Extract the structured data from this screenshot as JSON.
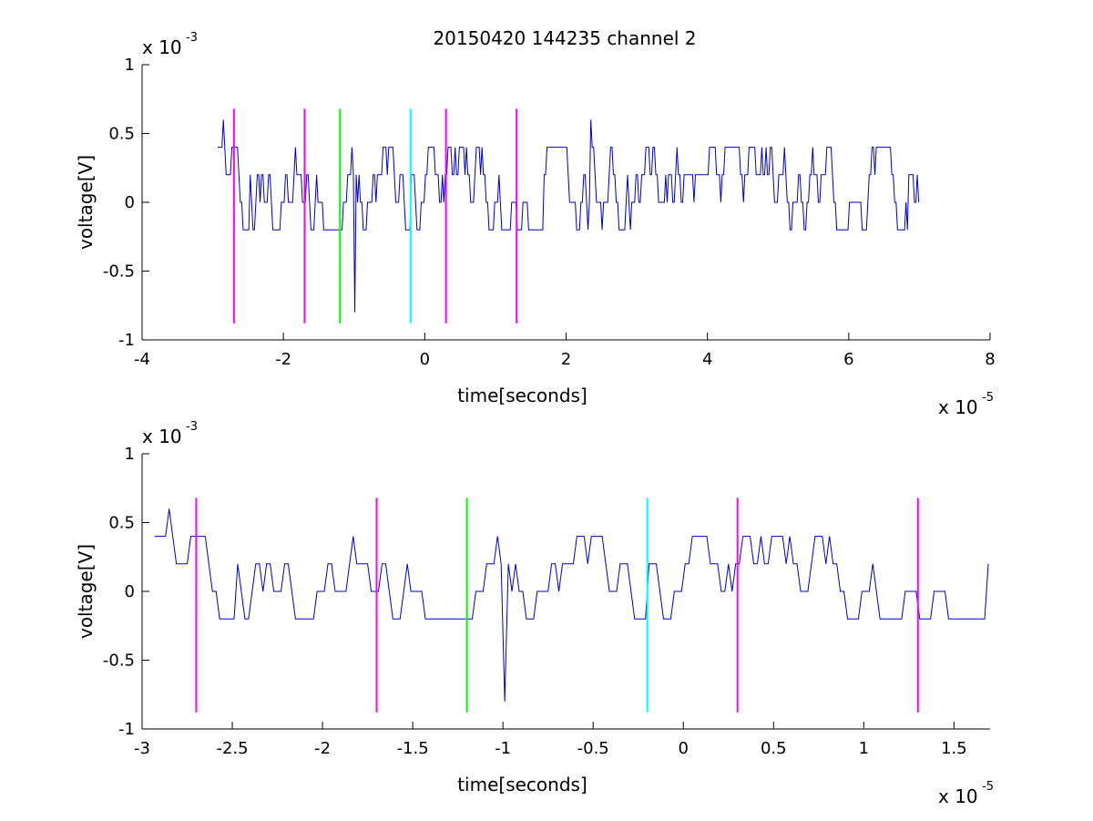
{
  "chart_data": [
    {
      "type": "line",
      "title": "20150420 144235 channel 2",
      "xlabel": "time[seconds]",
      "ylabel": "voltage[V]",
      "x_multiplier_label": "x 10",
      "x_multiplier_exp": "-5",
      "y_multiplier_label": "x 10",
      "y_multiplier_exp": "-3",
      "xlim": [
        -4,
        8
      ],
      "ylim": [
        -1,
        1
      ],
      "xticks": [
        "-4",
        "-2",
        "0",
        "2",
        "4",
        "6",
        "8"
      ],
      "yticks": [
        "1",
        "0.5",
        "0",
        "-0.5",
        "-1"
      ],
      "signal": {
        "color": "#0000cc",
        "x_start": -2.93,
        "x_end": 7.0,
        "sample_step": 0.02,
        "quantization": 0.2,
        "notable_points": [
          [
            -2.85,
            0.6
          ],
          [
            -0.98,
            -0.8
          ],
          [
            2.35,
            0.6
          ]
        ]
      },
      "markers": [
        {
          "x": -2.7,
          "color": "#ff00ff",
          "y_range": [
            -0.88,
            0.68
          ]
        },
        {
          "x": -1.7,
          "color": "#ff00ff",
          "y_range": [
            -0.88,
            0.68
          ]
        },
        {
          "x": -1.2,
          "color": "#00ff00",
          "y_range": [
            -0.88,
            0.68
          ]
        },
        {
          "x": -0.2,
          "color": "#00ffff",
          "y_range": [
            -0.88,
            0.68
          ]
        },
        {
          "x": 0.3,
          "color": "#ff00ff",
          "y_range": [
            -0.88,
            0.68
          ]
        },
        {
          "x": 1.3,
          "color": "#ff00ff",
          "y_range": [
            -0.88,
            0.68
          ]
        }
      ],
      "grid": false,
      "legend": "none"
    },
    {
      "type": "line",
      "title": "",
      "xlabel": "time[seconds]",
      "ylabel": "voltage[V]",
      "x_multiplier_label": "x 10",
      "x_multiplier_exp": "-5",
      "y_multiplier_label": "x 10",
      "y_multiplier_exp": "-3",
      "xlim": [
        -3.0,
        1.7
      ],
      "ylim": [
        -1,
        1
      ],
      "xticks": [
        "-3",
        "-2.5",
        "-2",
        "-1.5",
        "-1",
        "-0.5",
        "0",
        "0.5",
        "1",
        "1.5"
      ],
      "yticks": [
        "1",
        "0.5",
        "0",
        "-0.5",
        "-1"
      ],
      "signal": {
        "color": "#0000cc",
        "x_start": -2.93,
        "x_end": 1.7,
        "sample_step": 0.02,
        "quantization": 0.2,
        "notable_points": [
          [
            -2.85,
            0.6
          ],
          [
            -0.98,
            -0.8
          ]
        ]
      },
      "markers": [
        {
          "x": -2.7,
          "color": "#ff00ff",
          "y_range": [
            -0.88,
            0.68
          ]
        },
        {
          "x": -1.7,
          "color": "#ff00ff",
          "y_range": [
            -0.88,
            0.68
          ]
        },
        {
          "x": -1.2,
          "color": "#00ff00",
          "y_range": [
            -0.88,
            0.68
          ]
        },
        {
          "x": -0.2,
          "color": "#00ffff",
          "y_range": [
            -0.88,
            0.68
          ]
        },
        {
          "x": 0.3,
          "color": "#ff00ff",
          "y_range": [
            -0.88,
            0.68
          ]
        },
        {
          "x": 1.3,
          "color": "#ff00ff",
          "y_range": [
            -0.88,
            0.68
          ]
        }
      ],
      "grid": false,
      "legend": "none"
    }
  ]
}
